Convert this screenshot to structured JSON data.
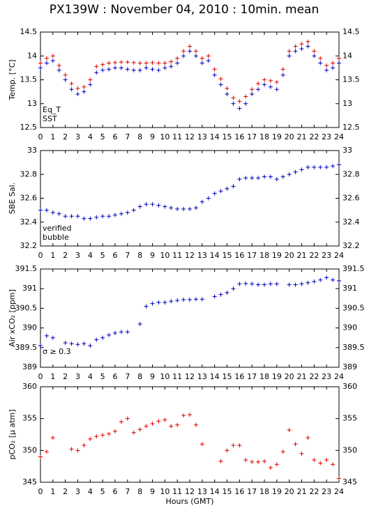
{
  "chart_data": [
    {
      "type": "scatter",
      "title": "PX139W : November 04, 2010 : 10min. mean",
      "y_label": "Temp. [°C]",
      "x": [
        0,
        0.5,
        1,
        1.5,
        2,
        2.5,
        3,
        3.5,
        4,
        4.5,
        5,
        5.5,
        6,
        6.5,
        7,
        7.5,
        8,
        8.5,
        9,
        9.5,
        10,
        10.5,
        11,
        11.5,
        12,
        12.5,
        13,
        13.5,
        14,
        14.5,
        15,
        15.5,
        16,
        16.5,
        17,
        17.5,
        18,
        18.5,
        19,
        19.5,
        20,
        20.5,
        21,
        21.5,
        22,
        22.5,
        23,
        23.5,
        24
      ],
      "xlim": [
        0,
        24
      ],
      "xticks": [
        0,
        1,
        2,
        3,
        4,
        5,
        6,
        7,
        8,
        9,
        10,
        11,
        12,
        13,
        14,
        15,
        16,
        17,
        18,
        19,
        20,
        21,
        22,
        23,
        24
      ],
      "ylim": [
        12.5,
        14.5
      ],
      "yticks": [
        12.5,
        13,
        13.5,
        14,
        14.5
      ],
      "series": [
        {
          "name": "Eq_T",
          "color": "#e00000",
          "values": [
            13.85,
            13.95,
            14.0,
            13.8,
            13.6,
            13.42,
            13.32,
            13.35,
            13.5,
            13.78,
            13.82,
            13.85,
            13.86,
            13.87,
            13.87,
            13.86,
            13.85,
            13.85,
            13.86,
            13.85,
            13.85,
            13.88,
            13.95,
            14.1,
            14.2,
            14.1,
            13.95,
            14.0,
            13.72,
            13.52,
            13.32,
            13.12,
            13.05,
            13.15,
            13.3,
            13.42,
            13.5,
            13.48,
            13.45,
            13.72,
            14.1,
            14.2,
            14.25,
            14.3,
            14.1,
            13.95,
            13.8,
            13.85,
            13.95
          ]
        },
        {
          "name": "SST",
          "color": "#0000c0",
          "values": [
            13.75,
            13.85,
            13.9,
            13.7,
            13.5,
            13.3,
            13.2,
            13.25,
            13.4,
            13.65,
            13.7,
            13.72,
            13.75,
            13.75,
            13.72,
            13.7,
            13.7,
            13.75,
            13.72,
            13.7,
            13.75,
            13.78,
            13.85,
            14.0,
            14.1,
            14.0,
            13.85,
            13.9,
            13.6,
            13.4,
            13.2,
            13.0,
            12.9,
            13.0,
            13.2,
            13.3,
            13.4,
            13.35,
            13.3,
            13.6,
            14.0,
            14.1,
            14.15,
            14.2,
            14.0,
            13.85,
            13.7,
            13.75,
            13.85
          ]
        }
      ]
    },
    {
      "type": "scatter",
      "y_label": "SBE Sal.",
      "x": [
        0,
        0.5,
        1,
        1.5,
        2,
        2.5,
        3,
        3.5,
        4,
        4.5,
        5,
        5.5,
        6,
        6.5,
        7,
        7.5,
        8,
        8.5,
        9,
        9.5,
        10,
        10.5,
        11,
        11.5,
        12,
        12.5,
        13,
        13.5,
        14,
        14.5,
        15,
        15.5,
        16,
        16.5,
        17,
        17.5,
        18,
        18.5,
        19,
        19.5,
        20,
        20.5,
        21,
        21.5,
        22,
        22.5,
        23,
        23.5,
        24
      ],
      "xlim": [
        0,
        24
      ],
      "xticks": [
        0,
        1,
        2,
        3,
        4,
        5,
        6,
        7,
        8,
        9,
        10,
        11,
        12,
        13,
        14,
        15,
        16,
        17,
        18,
        19,
        20,
        21,
        22,
        23,
        24
      ],
      "ylim": [
        32.2,
        33
      ],
      "yticks": [
        32.2,
        32.4,
        32.6,
        32.8,
        33
      ],
      "series": [
        {
          "name": "verified",
          "color": "#0000c0",
          "values": [
            32.5,
            32.5,
            32.48,
            32.47,
            32.45,
            32.45,
            32.45,
            32.43,
            32.43,
            32.44,
            32.45,
            32.45,
            32.46,
            32.47,
            32.48,
            32.5,
            32.53,
            32.55,
            32.55,
            32.54,
            32.53,
            32.52,
            32.51,
            32.51,
            32.51,
            32.52,
            32.57,
            32.6,
            32.64,
            32.66,
            32.68,
            32.7,
            32.76,
            32.77,
            32.77,
            32.77,
            32.78,
            32.78,
            32.76,
            32.78,
            32.8,
            32.82,
            32.84,
            32.86,
            32.86,
            32.86,
            32.86,
            32.87,
            32.88
          ]
        },
        {
          "name": "bubble",
          "color": "#d000d0",
          "values": [
            null,
            null,
            null,
            null,
            null,
            null,
            null,
            null,
            null,
            null,
            null,
            null,
            null,
            null,
            null,
            null,
            null,
            null,
            null,
            null,
            null,
            null,
            null,
            null,
            null,
            null,
            null,
            null,
            null,
            null,
            null,
            null,
            null,
            null,
            null,
            null,
            null,
            null,
            null,
            null,
            null,
            null,
            null,
            null,
            null,
            null,
            null,
            null,
            null
          ]
        }
      ]
    },
    {
      "type": "scatter",
      "y_label": "Air xCO₂ [ppm]",
      "x": [
        0,
        0.5,
        1,
        1.5,
        2,
        2.5,
        3,
        3.5,
        4,
        4.5,
        5,
        5.5,
        6,
        6.5,
        7,
        7.5,
        8,
        8.5,
        9,
        9.5,
        10,
        10.5,
        11,
        11.5,
        12,
        12.5,
        13,
        13.5,
        14,
        14.5,
        15,
        15.5,
        16,
        16.5,
        17,
        17.5,
        18,
        18.5,
        19,
        19.5,
        20,
        20.5,
        21,
        21.5,
        22,
        22.5,
        23,
        23.5,
        24
      ],
      "xlim": [
        0,
        24
      ],
      "xticks": [
        0,
        1,
        2,
        3,
        4,
        5,
        6,
        7,
        8,
        9,
        10,
        11,
        12,
        13,
        14,
        15,
        16,
        17,
        18,
        19,
        20,
        21,
        22,
        23,
        24
      ],
      "ylim": [
        389,
        391.5
      ],
      "yticks": [
        389,
        389.5,
        390,
        390.5,
        391,
        391.5
      ],
      "annotations": [
        {
          "text": "σ ≥ 0.3",
          "color": "#d000d0"
        }
      ],
      "series": [
        {
          "name": "xCO2",
          "color": "#0000c0",
          "values": [
            389.55,
            389.8,
            389.75,
            null,
            389.62,
            389.6,
            389.58,
            389.6,
            389.55,
            389.7,
            389.75,
            389.82,
            389.87,
            389.9,
            389.9,
            null,
            390.1,
            390.55,
            390.62,
            390.65,
            390.65,
            390.68,
            390.7,
            390.72,
            390.72,
            390.73,
            390.73,
            null,
            390.8,
            390.85,
            390.9,
            391.0,
            391.12,
            391.13,
            391.12,
            391.1,
            391.1,
            391.12,
            391.12,
            null,
            391.1,
            391.1,
            391.12,
            391.15,
            391.18,
            391.22,
            391.28,
            391.22,
            391.2
          ]
        }
      ]
    },
    {
      "type": "scatter",
      "y_label": "pCO₂ [μ atm]",
      "x_label": "Hours (GMT)",
      "x": [
        0,
        0.5,
        1,
        1.5,
        2,
        2.5,
        3,
        3.5,
        4,
        4.5,
        5,
        5.5,
        6,
        6.5,
        7,
        7.5,
        8,
        8.5,
        9,
        9.5,
        10,
        10.5,
        11,
        11.5,
        12,
        12.5,
        13,
        13.5,
        14,
        14.5,
        15,
        15.5,
        16,
        16.5,
        17,
        17.5,
        18,
        18.5,
        19,
        19.5,
        20,
        20.5,
        21,
        21.5,
        22,
        22.5,
        23,
        23.5,
        24
      ],
      "xlim": [
        0,
        24
      ],
      "xticks": [
        0,
        1,
        2,
        3,
        4,
        5,
        6,
        7,
        8,
        9,
        10,
        11,
        12,
        13,
        14,
        15,
        16,
        17,
        18,
        19,
        20,
        21,
        22,
        23,
        24
      ],
      "ylim": [
        345,
        360
      ],
      "yticks": [
        345,
        350,
        355,
        360
      ],
      "series": [
        {
          "name": "pCO2",
          "color": "#e00000",
          "values": [
            349,
            349.8,
            352,
            null,
            null,
            350.2,
            350,
            350.8,
            351.8,
            352.2,
            352.4,
            352.6,
            353,
            354.5,
            355,
            352.8,
            353.3,
            353.8,
            354.2,
            354.6,
            354.8,
            353.8,
            354,
            355.5,
            355.6,
            354,
            351,
            null,
            null,
            348.3,
            350,
            350.8,
            350.8,
            348.5,
            348.2,
            348.2,
            348.3,
            347.3,
            347.8,
            349.8,
            353.2,
            351,
            349.5,
            352,
            348.5,
            348,
            348.5,
            347.8,
            345.6
          ]
        }
      ]
    }
  ]
}
